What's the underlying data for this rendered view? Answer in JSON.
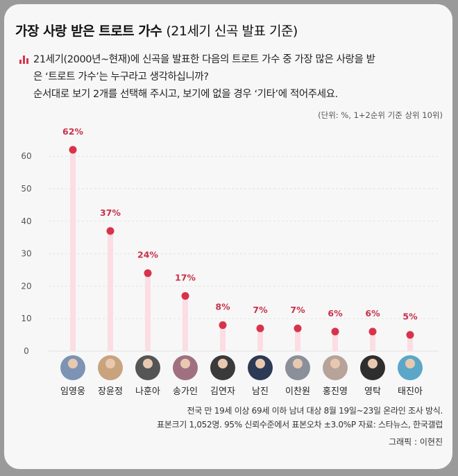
{
  "title": "가장 사랑 받은 트로트 가수",
  "title_sub": "(21세기 신곡 발표 기준)",
  "question_lines": [
    "21세기(2000년~현재)에 신곡을 발표한 다음의 트로트 가수 중 가장 많은 사랑을 받",
    "은 ‘트로트 가수’는 누구라고 생각하십니까?",
    "순서대로 보기 2개를 선택해 주시고, 보기에 없을 경우 ‘기타’에 적어주세요."
  ],
  "unit_note": "(단위: %, 1+2순위 기준 상위 10위)",
  "footnote_lines": [
    "전국 만 19세 이상 69세 이하 남녀 대상 8월 19일~23일 온라인 조사 방식.",
    "표본크기 1,052명. 95% 신뢰수준에서 표본오차 ±3.0%P 자료: 스타뉴스, 한국갤럽"
  ],
  "credit": "그래픽 : 이현진",
  "colors": {
    "dot": "#d8334a",
    "stem": "#fcdde3",
    "label": "#c8324a",
    "grid": "#e2e2e2"
  },
  "chart_data": {
    "type": "lollipop",
    "categories": [
      "임영웅",
      "장윤정",
      "나훈아",
      "송가인",
      "김연자",
      "남진",
      "이찬원",
      "홍진영",
      "영탁",
      "태진아"
    ],
    "values": [
      62,
      37,
      24,
      17,
      8,
      7,
      7,
      6,
      6,
      5
    ],
    "data_labels": [
      "62%",
      "37%",
      "24%",
      "17%",
      "8%",
      "7%",
      "7%",
      "6%",
      "6%",
      "5%"
    ],
    "yticks": [
      "0",
      "10",
      "20",
      "30",
      "40",
      "50",
      "60"
    ],
    "ylim": [
      0,
      65
    ],
    "grid": true,
    "category_icons": "portrait-photo"
  }
}
